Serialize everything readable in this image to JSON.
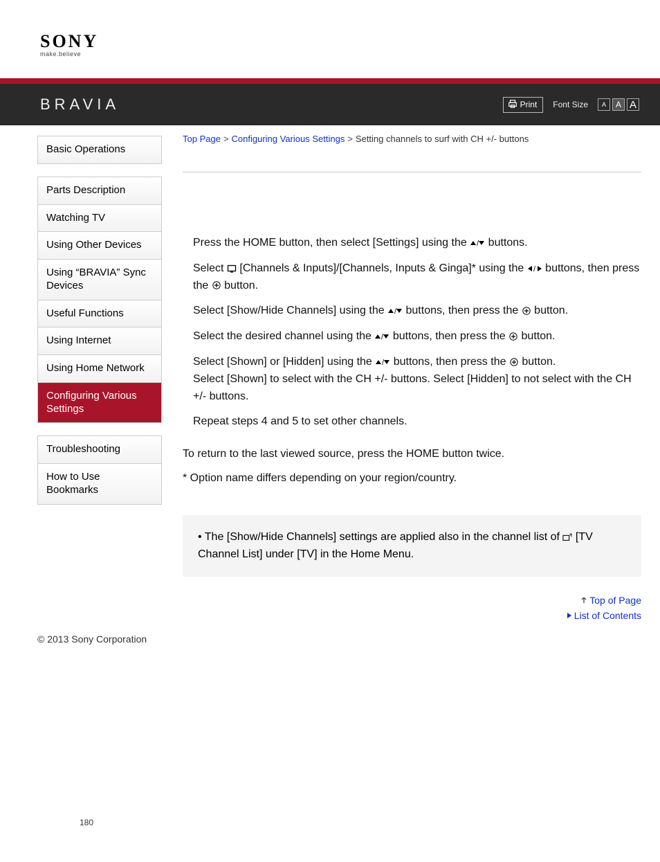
{
  "brand": {
    "logo": "SONY",
    "tagline": "make.believe",
    "product": "BRAVIA"
  },
  "header_tools": {
    "print_label": "Print",
    "font_size_label": "Font Size",
    "font_size_letters": {
      "small": "A",
      "medium": "A",
      "large": "A"
    }
  },
  "colors": {
    "accent": "#a8152a",
    "header_bg": "#2a2a2a",
    "link": "#1030d0",
    "notice_bg": "#f4f4f4",
    "border": "#cccccc"
  },
  "sidebar": {
    "groups": [
      {
        "items": [
          {
            "label": "Basic Operations",
            "active": false
          }
        ]
      },
      {
        "items": [
          {
            "label": "Parts Description",
            "active": false
          },
          {
            "label": "Watching TV",
            "active": false
          },
          {
            "label": "Using Other Devices",
            "active": false
          },
          {
            "label": "Using “BRAVIA” Sync Devices",
            "active": false
          },
          {
            "label": "Useful Functions",
            "active": false
          },
          {
            "label": "Using Internet",
            "active": false
          },
          {
            "label": "Using Home Network",
            "active": false
          },
          {
            "label": "Configuring Various Settings",
            "active": true
          }
        ]
      },
      {
        "items": [
          {
            "label": "Troubleshooting",
            "active": false
          },
          {
            "label": "How to Use Bookmarks",
            "active": false
          }
        ]
      }
    ]
  },
  "breadcrumb": {
    "items": [
      {
        "label": "Top Page",
        "link": true
      },
      {
        "label": "Configuring Various Settings",
        "link": true
      },
      {
        "label": "Setting channels to surf with CH +/- buttons",
        "link": false
      }
    ],
    "separator": ">"
  },
  "steps": [
    {
      "parts": [
        {
          "type": "text",
          "value": "Press the HOME button, then select [Settings] using the "
        },
        {
          "type": "icon",
          "value": "updown"
        },
        {
          "type": "text",
          "value": " buttons."
        }
      ]
    },
    {
      "parts": [
        {
          "type": "text",
          "value": "Select "
        },
        {
          "type": "icon",
          "value": "tv"
        },
        {
          "type": "text",
          "value": " [Channels & Inputs]/[Channels, Inputs & Ginga]* using the "
        },
        {
          "type": "icon",
          "value": "leftright"
        },
        {
          "type": "text",
          "value": " buttons, then press the "
        },
        {
          "type": "icon",
          "value": "plus"
        },
        {
          "type": "text",
          "value": " button."
        }
      ]
    },
    {
      "parts": [
        {
          "type": "text",
          "value": "Select [Show/Hide Channels] using the "
        },
        {
          "type": "icon",
          "value": "updown"
        },
        {
          "type": "text",
          "value": " buttons, then press the "
        },
        {
          "type": "icon",
          "value": "plus"
        },
        {
          "type": "text",
          "value": " button."
        }
      ]
    },
    {
      "parts": [
        {
          "type": "text",
          "value": "Select the desired channel using the "
        },
        {
          "type": "icon",
          "value": "updown"
        },
        {
          "type": "text",
          "value": " buttons, then press the "
        },
        {
          "type": "icon",
          "value": "plus"
        },
        {
          "type": "text",
          "value": " button."
        }
      ]
    },
    {
      "parts": [
        {
          "type": "text",
          "value": "Select [Shown] or [Hidden] using the "
        },
        {
          "type": "icon",
          "value": "updown"
        },
        {
          "type": "text",
          "value": " buttons, then press the "
        },
        {
          "type": "icon",
          "value": "plus"
        },
        {
          "type": "text",
          "value": " button."
        },
        {
          "type": "br"
        },
        {
          "type": "text",
          "value": "Select [Shown] to select with the CH +/- buttons. Select [Hidden] to not select with the CH +/- buttons."
        }
      ]
    },
    {
      "parts": [
        {
          "type": "text",
          "value": "Repeat steps 4 and 5 to set other channels."
        }
      ]
    }
  ],
  "notes": [
    "To return to the last viewed source, press the HOME button twice.",
    "* Option name differs depending on your region/country."
  ],
  "notice": {
    "parts": [
      {
        "type": "text",
        "value": "The [Show/Hide Channels] settings are applied also in the channel list of "
      },
      {
        "type": "icon",
        "value": "broadcast"
      },
      {
        "type": "text",
        "value": " [TV Channel List] under [TV] in the Home Menu."
      }
    ]
  },
  "bottom_links": {
    "top_of_page": "Top of Page",
    "list_of_contents": "List of Contents"
  },
  "copyright": "© 2013 Sony Corporation",
  "page_number": "180"
}
